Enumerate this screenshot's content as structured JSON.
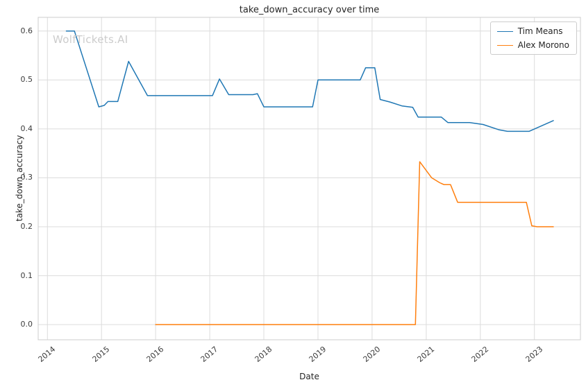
{
  "chart_data": {
    "type": "line",
    "title": "take_down_accuracy over time",
    "xlabel": "Date",
    "ylabel": "take_down_accuracy",
    "watermark": "WolfTickets.AI",
    "grid": true,
    "legend_position": "top-right",
    "xlim": [
      2013.83,
      2023.85
    ],
    "ylim": [
      -0.031,
      0.628
    ],
    "xticks": [
      2014,
      2015,
      2016,
      2017,
      2018,
      2019,
      2020,
      2021,
      2022,
      2023
    ],
    "yticks": [
      0.0,
      0.1,
      0.2,
      0.3,
      0.4,
      0.5,
      0.6
    ],
    "series": [
      {
        "name": "Tim Means",
        "color": "#1f77b4",
        "points": [
          [
            2014.35,
            0.6
          ],
          [
            2014.5,
            0.6
          ],
          [
            2014.95,
            0.445
          ],
          [
            2015.05,
            0.448
          ],
          [
            2015.12,
            0.456
          ],
          [
            2015.3,
            0.456
          ],
          [
            2015.5,
            0.538
          ],
          [
            2015.85,
            0.468
          ],
          [
            2017.05,
            0.468
          ],
          [
            2017.18,
            0.502
          ],
          [
            2017.35,
            0.47
          ],
          [
            2017.8,
            0.47
          ],
          [
            2017.88,
            0.472
          ],
          [
            2018.0,
            0.445
          ],
          [
            2018.9,
            0.445
          ],
          [
            2019.0,
            0.5
          ],
          [
            2019.78,
            0.5
          ],
          [
            2019.88,
            0.525
          ],
          [
            2020.05,
            0.525
          ],
          [
            2020.15,
            0.46
          ],
          [
            2020.33,
            0.455
          ],
          [
            2020.55,
            0.447
          ],
          [
            2020.75,
            0.444
          ],
          [
            2020.85,
            0.424
          ],
          [
            2021.28,
            0.424
          ],
          [
            2021.4,
            0.413
          ],
          [
            2021.8,
            0.413
          ],
          [
            2022.05,
            0.409
          ],
          [
            2022.35,
            0.398
          ],
          [
            2022.5,
            0.395
          ],
          [
            2022.9,
            0.395
          ],
          [
            2023.35,
            0.417
          ]
        ]
      },
      {
        "name": "Alex Morono",
        "color": "#ff7f0e",
        "points": [
          [
            2016.0,
            0.0
          ],
          [
            2020.8,
            0.0
          ],
          [
            2020.88,
            0.333
          ],
          [
            2021.1,
            0.3
          ],
          [
            2021.25,
            0.29
          ],
          [
            2021.33,
            0.286
          ],
          [
            2021.45,
            0.286
          ],
          [
            2021.58,
            0.25
          ],
          [
            2022.85,
            0.25
          ],
          [
            2022.95,
            0.202
          ],
          [
            2023.05,
            0.2
          ],
          [
            2023.35,
            0.2
          ]
        ]
      }
    ]
  }
}
